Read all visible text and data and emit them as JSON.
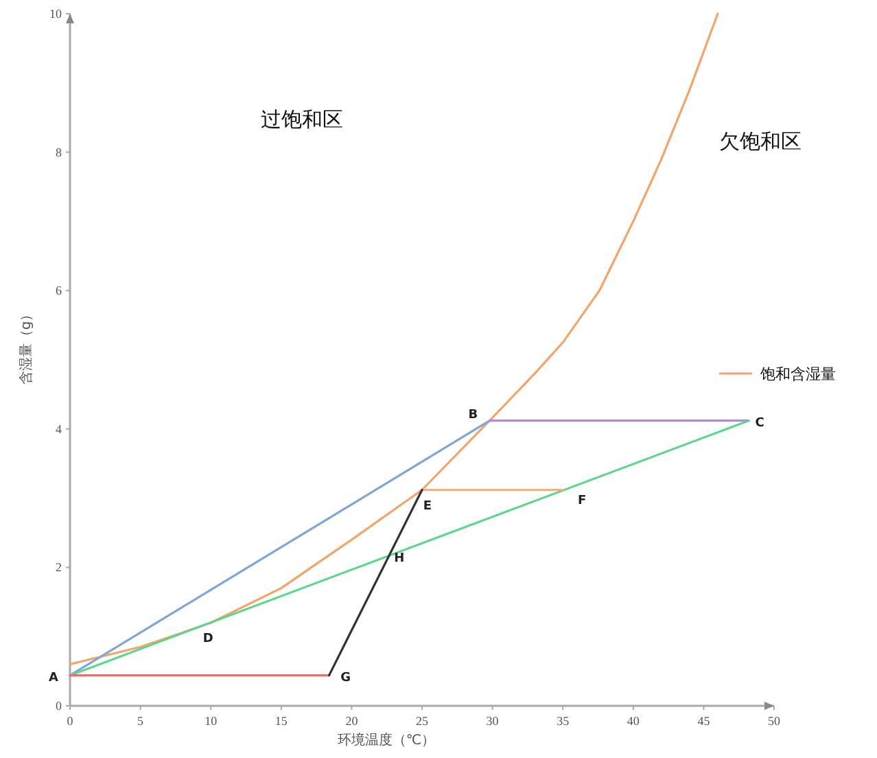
{
  "chart_data": {
    "type": "line",
    "xlabel": "环境温度（℃）",
    "ylabel": "含湿量（g）",
    "xlim": [
      0,
      50
    ],
    "ylim": [
      0,
      10
    ],
    "xticks": [
      0,
      5,
      10,
      15,
      20,
      25,
      30,
      35,
      40,
      45,
      50
    ],
    "yticks": [
      0,
      2,
      4,
      6,
      8,
      10
    ],
    "legend": "right",
    "grid": false,
    "marker": "none",
    "line_style": "solid",
    "series": [
      {
        "name": "饱和含湿量",
        "color": "#f4a46a",
        "x": [
          0,
          5,
          10,
          15,
          20,
          25,
          29.8,
          33,
          35,
          37.6,
          40,
          42,
          44,
          46
        ],
        "values": [
          0.6,
          0.85,
          1.2,
          1.7,
          2.4,
          3.12,
          4.12,
          4.8,
          5.25,
          6.0,
          7.0,
          7.9,
          8.9,
          10
        ]
      },
      {
        "color": "#7fa7d6",
        "x": [
          0,
          29.8
        ],
        "values": [
          0.44,
          4.12
        ]
      },
      {
        "color": "#b48ad8",
        "x": [
          29.8,
          48.2
        ],
        "values": [
          4.12,
          4.12
        ]
      },
      {
        "color": "#5cd68a",
        "x": [
          0,
          48.2
        ],
        "values": [
          0.44,
          4.12
        ]
      },
      {
        "color": "#f4b078",
        "x": [
          25,
          35
        ],
        "values": [
          3.12,
          3.12
        ]
      },
      {
        "color": "#f56c6c",
        "x": [
          0,
          18.4
        ],
        "values": [
          0.44,
          0.44
        ]
      },
      {
        "color": "#333333",
        "x": [
          18.4,
          25
        ],
        "values": [
          0.44,
          3.12
        ]
      }
    ],
    "annotations": [
      "过饱和区",
      "欠饱和区",
      {
        "text": "A",
        "x": 0,
        "y": 0.44
      },
      {
        "text": "B",
        "x": 29.8,
        "y": 4.12
      },
      {
        "text": "C",
        "x": 48.2,
        "y": 4.12
      },
      {
        "text": "D",
        "x": 10,
        "y": 1.2
      },
      {
        "text": "E",
        "x": 25,
        "y": 3.12
      },
      {
        "text": "F",
        "x": 35,
        "y": 3.12
      },
      {
        "text": "G",
        "x": 18.4,
        "y": 0.44
      },
      {
        "text": "H",
        "x": 22.8,
        "y": 2.2
      }
    ]
  }
}
